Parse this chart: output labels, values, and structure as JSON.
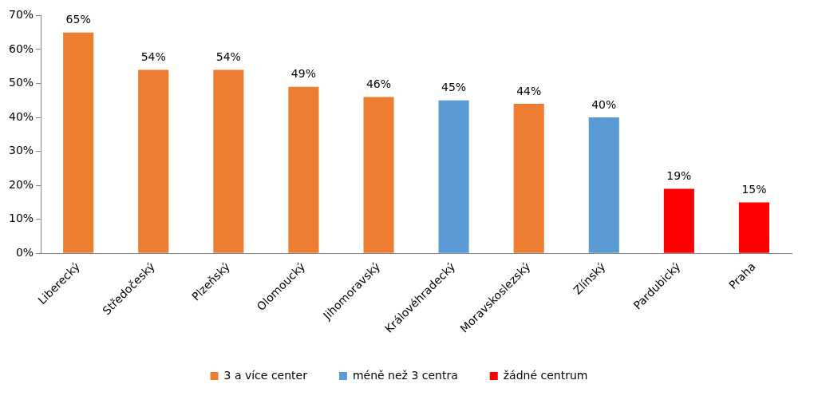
{
  "chart_data": {
    "type": "bar",
    "categories": [
      "Liberecký",
      "Středočeský",
      "Plzeňský",
      "Olomoucký",
      "Jihomoravský",
      "Královéhradecký",
      "Moravskoslezský",
      "Zlínský",
      "Pardubický",
      "Praha"
    ],
    "series": [
      {
        "name": "3 a více center",
        "color": "#ed7d31",
        "values": [
          65,
          54,
          54,
          49,
          46,
          null,
          44,
          null,
          null,
          null
        ],
        "value_labels": [
          "65%",
          "54%",
          "54%",
          "49%",
          "46%",
          null,
          "44%",
          null,
          null,
          null
        ]
      },
      {
        "name": "méně než 3 centra",
        "color": "#5b9bd5",
        "values": [
          null,
          null,
          null,
          null,
          null,
          45,
          null,
          40,
          null,
          null
        ],
        "value_labels": [
          null,
          null,
          null,
          null,
          null,
          "45%",
          null,
          "40%",
          null,
          null
        ]
      },
      {
        "name": "žádné centrum",
        "color": "#ff0000",
        "values": [
          null,
          null,
          null,
          null,
          null,
          null,
          null,
          null,
          19,
          15
        ],
        "value_labels": [
          null,
          null,
          null,
          null,
          null,
          null,
          null,
          null,
          "19%",
          "15%"
        ]
      }
    ],
    "ylim": [
      0,
      70
    ],
    "yticks": [
      {
        "value": 0,
        "label": "0%"
      },
      {
        "value": 10,
        "label": "10%"
      },
      {
        "value": 20,
        "label": "20%"
      },
      {
        "value": 30,
        "label": "30%"
      },
      {
        "value": 40,
        "label": "40%"
      },
      {
        "value": 50,
        "label": "50%"
      },
      {
        "value": 60,
        "label": "60%"
      },
      {
        "value": 70,
        "label": "70%"
      }
    ],
    "grid": false,
    "legend": "bottom"
  }
}
